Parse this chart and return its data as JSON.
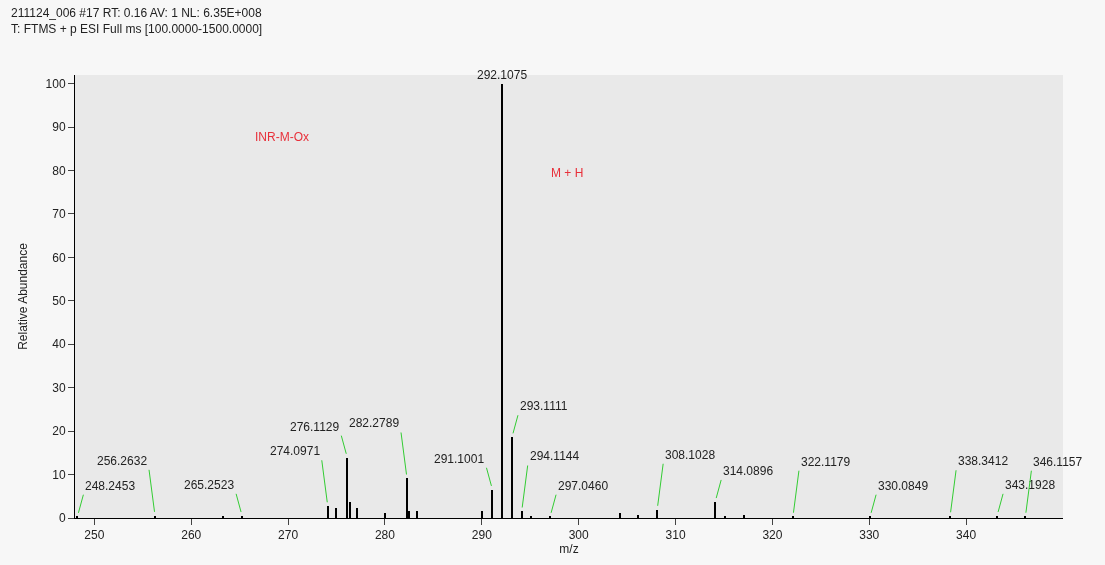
{
  "chart_data": {
    "type": "bar",
    "title": "211124_006 #17 RT: 0.16 AV: 1 NL: 6.35E+008",
    "subtitle": "T: FTMS + p ESI Full ms [100.0000-1500.0000]",
    "xlabel": "m/z",
    "ylabel": "Relative Abundance",
    "x": [
      248.2453,
      256.2632,
      263.3,
      265.2523,
      274.0971,
      275.0,
      276.1129,
      276.4,
      277.1,
      280.0,
      282.2789,
      282.5,
      283.3,
      290.0,
      291.1001,
      292.1075,
      293.1111,
      294.1144,
      295.1,
      297.046,
      304.3,
      306.1,
      308.1028,
      314.0896,
      315.1,
      317.1,
      322.1179,
      330.0849,
      338.3412,
      343.1928,
      346.1157
    ],
    "values": [
      0.3,
      0.5,
      0.4,
      0.5,
      2.7,
      2.4,
      13.9,
      3.7,
      2.4,
      1.1,
      9.1,
      1.7,
      1.7,
      1.7,
      6.5,
      100,
      18.6,
      1.5,
      0.5,
      0.3,
      1.1,
      0.6,
      1.9,
      3.7,
      0.5,
      0.6,
      0.3,
      0.3,
      0.4,
      0.5,
      0.3
    ],
    "color": "#000000",
    "xlim": [
      248,
      350
    ],
    "ylim": [
      0,
      102
    ],
    "xticks": [
      250,
      260,
      270,
      280,
      290,
      300,
      310,
      320,
      330,
      340
    ],
    "yticks": [
      0,
      10,
      20,
      30,
      40,
      50,
      60,
      70,
      80,
      90,
      100
    ],
    "grid": false,
    "annotations": [
      "INR-M-Ox",
      "M + H",
      {
        "text": "248.2453",
        "x": 248.2453,
        "y": 0.3
      },
      {
        "text": "256.2632",
        "x": 256.2632,
        "y": 0.5
      },
      {
        "text": "265.2523",
        "x": 265.2523,
        "y": 0.5
      },
      {
        "text": "274.0971",
        "x": 274.0971,
        "y": 2.7
      },
      {
        "text": "276.1129",
        "x": 276.1129,
        "y": 13.9
      },
      {
        "text": "282.2789",
        "x": 282.2789,
        "y": 9.1
      },
      {
        "text": "291.1001",
        "x": 291.1001,
        "y": 6.5
      },
      {
        "text": "292.1075",
        "x": 292.1075,
        "y": 100
      },
      {
        "text": "293.1111",
        "x": 293.1111,
        "y": 18.6
      },
      {
        "text": "294.1144",
        "x": 294.1144,
        "y": 1.5
      },
      {
        "text": "297.0460",
        "x": 297.046,
        "y": 0.3
      },
      {
        "text": "308.1028",
        "x": 308.1028,
        "y": 1.9
      },
      {
        "text": "314.0896",
        "x": 314.0896,
        "y": 3.7
      },
      {
        "text": "322.1179",
        "x": 322.1179,
        "y": 0.3
      },
      {
        "text": "330.0849",
        "x": 330.0849,
        "y": 0.3
      },
      {
        "text": "338.3412",
        "x": 338.3412,
        "y": 0.4
      },
      {
        "text": "343.1928",
        "x": 343.1928,
        "y": 0.5
      },
      {
        "text": "346.1157",
        "x": 346.1157,
        "y": 0.3
      }
    ]
  }
}
